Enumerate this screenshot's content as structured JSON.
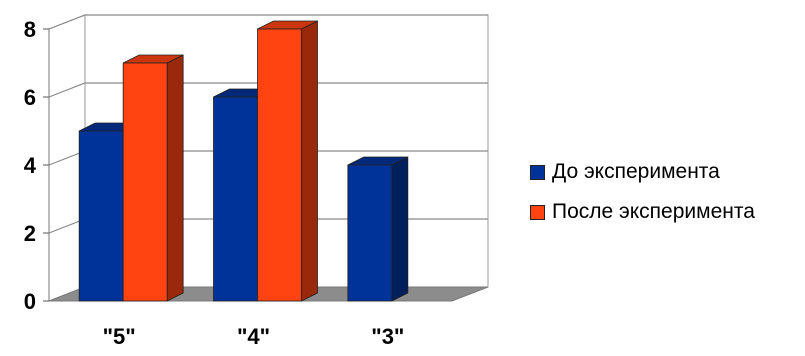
{
  "chart_data": {
    "type": "bar",
    "categories": [
      "\"5\"",
      "\"4\"",
      "\"3\""
    ],
    "series": [
      {
        "name": "До эксперимента",
        "values": [
          5,
          6,
          4
        ],
        "color": "#003399"
      },
      {
        "name": "После эксперимента",
        "values": [
          7,
          8,
          null
        ],
        "color": "#FF4411"
      }
    ],
    "ylim": [
      0,
      8
    ],
    "yticks": [
      0,
      2,
      4,
      6,
      8
    ],
    "grid": true,
    "legend_position": "right",
    "style": "3d"
  },
  "legend": {
    "items": [
      {
        "label": "До эксперимента",
        "color": "#003399"
      },
      {
        "label": "После эксперимента",
        "color": "#FF4411"
      }
    ]
  }
}
